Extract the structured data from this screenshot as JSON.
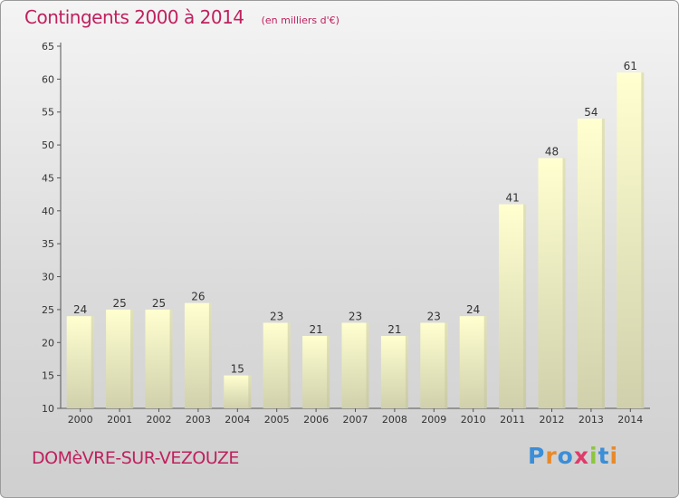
{
  "header": {
    "title": "Contingents 2000 à 2014",
    "unit": "(en milliers d'€)"
  },
  "footer": {
    "commune": "DOMèVRE-SUR-VEZOUZE",
    "logo_text": "Proxiti"
  },
  "colors": {
    "title": "#c0205e",
    "bar_top": "#ffffd0",
    "bar_bottom": "#d0d0ac",
    "bar_side": "#c4c4a0",
    "logo": [
      "#3b8ed8",
      "#e88a2a",
      "#3b8ed8",
      "#e03a6a",
      "#8cc63f",
      "#3b8ed8",
      "#e88a2a"
    ]
  },
  "chart_data": {
    "type": "bar",
    "title": "Contingents 2000 à 2014",
    "subtitle": "(en milliers d'€)",
    "categories": [
      "2000",
      "2001",
      "2002",
      "2003",
      "2004",
      "2005",
      "2006",
      "2007",
      "2008",
      "2009",
      "2010",
      "2011",
      "2012",
      "2013",
      "2014"
    ],
    "values": [
      24,
      25,
      25,
      26,
      15,
      23,
      21,
      23,
      21,
      23,
      24,
      41,
      48,
      54,
      61
    ],
    "ylim": [
      10,
      65
    ],
    "yticks": [
      10,
      15,
      20,
      25,
      30,
      35,
      40,
      45,
      50,
      55,
      60,
      65
    ],
    "grid": false,
    "data_labels": true
  }
}
